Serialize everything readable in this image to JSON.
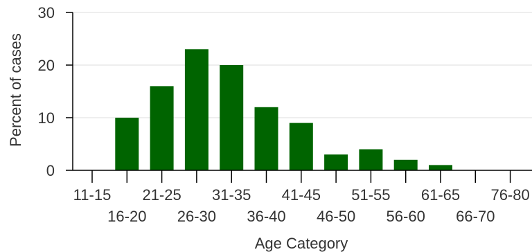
{
  "chart_data": {
    "type": "bar",
    "title": "",
    "xlabel": "Age Category",
    "ylabel": "Percent of cases",
    "categories": [
      "11-15",
      "16-20",
      "21-25",
      "26-30",
      "31-35",
      "36-40",
      "41-45",
      "46-50",
      "51-55",
      "56-60",
      "61-65",
      "66-70",
      "76-80"
    ],
    "values": [
      0,
      10,
      16,
      23,
      20,
      12,
      9,
      3,
      4,
      2,
      1,
      0,
      0
    ],
    "ylim": [
      0,
      30
    ],
    "yticks": [
      0,
      10,
      20,
      30
    ],
    "grid": true,
    "legend": "none",
    "colors": {
      "bar": "#006400",
      "grid": "#dddddd",
      "axis": "#000000",
      "text": "#333333"
    }
  }
}
